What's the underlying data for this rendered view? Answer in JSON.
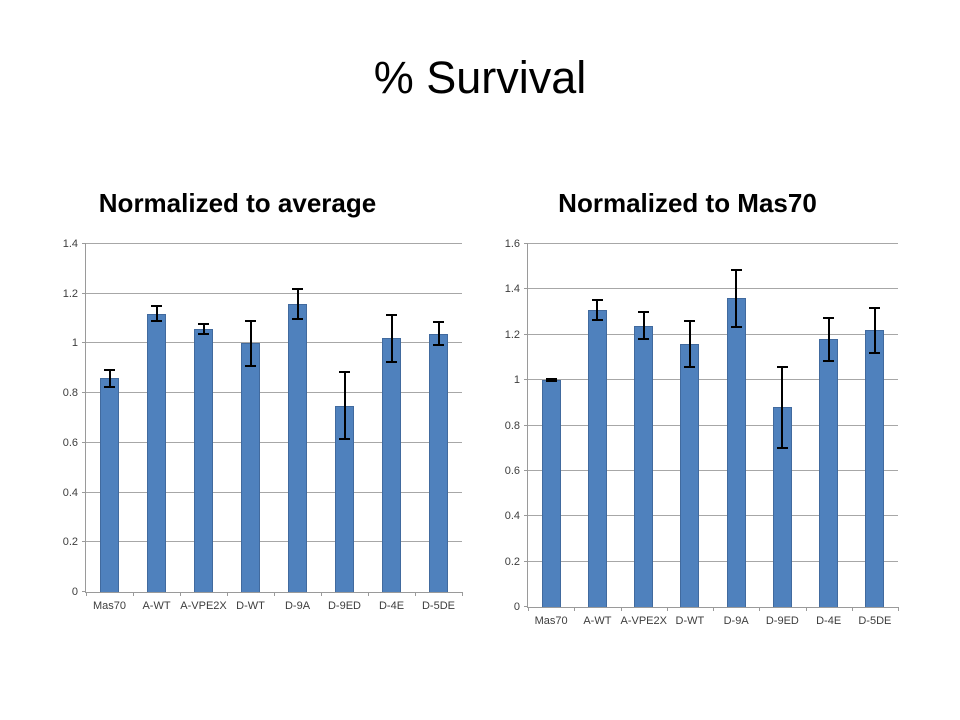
{
  "slide": {
    "title": "% Survival"
  },
  "chart_data": [
    {
      "type": "bar",
      "title": "Normalized to average",
      "categories": [
        "Mas70",
        "A-WT",
        "A-VPE2X",
        "D-WT",
        "D-9A",
        "D-9ED",
        "D-4E",
        "D-5DE"
      ],
      "values": [
        0.86,
        1.12,
        1.06,
        1.0,
        1.16,
        0.75,
        1.02,
        1.04
      ],
      "errors": [
        0.035,
        0.03,
        0.02,
        0.09,
        0.06,
        0.135,
        0.095,
        0.045
      ],
      "xlabel": "",
      "ylabel": "",
      "ylim": [
        0,
        1.4
      ],
      "yticks": [
        0,
        0.2,
        0.4,
        0.6,
        0.8,
        1,
        1.2,
        1.4
      ],
      "ytick_labels": [
        "0",
        "0.2",
        "0.4",
        "0.6",
        "0.8",
        "1",
        "1.2",
        "1.4"
      ],
      "grid": true,
      "legend": false,
      "bar_color": "#4F81BD",
      "error_bar_color": "#000000"
    },
    {
      "type": "bar",
      "title": "Normalized to Mas70",
      "categories": [
        "Mas70",
        "A-WT",
        "A-VPE2X",
        "D-WT",
        "D-9A",
        "D-9ED",
        "D-4E",
        "D-5DE"
      ],
      "values": [
        1.0,
        1.31,
        1.24,
        1.16,
        1.36,
        0.88,
        1.18,
        1.22
      ],
      "errors": [
        0.005,
        0.045,
        0.06,
        0.1,
        0.125,
        0.18,
        0.095,
        0.1
      ],
      "xlabel": "",
      "ylabel": "",
      "ylim": [
        0,
        1.6
      ],
      "yticks": [
        0,
        0.2,
        0.4,
        0.6,
        0.8,
        1,
        1.2,
        1.4,
        1.6
      ],
      "ytick_labels": [
        "0",
        "0.2",
        "0.4",
        "0.6",
        "0.8",
        "1",
        "1.2",
        "1.4",
        "1.6"
      ],
      "grid": true,
      "legend": false,
      "bar_color": "#4F81BD",
      "error_bar_color": "#000000"
    }
  ]
}
